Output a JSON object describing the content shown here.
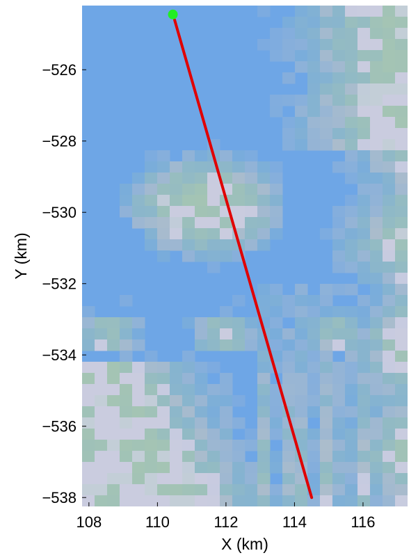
{
  "chart_data": {
    "type": "line",
    "title": "",
    "xlabel": "X (km)",
    "ylabel": "Y (km)",
    "xlim": [
      107.8,
      117.3
    ],
    "ylim": [
      -538.25,
      -524.2
    ],
    "xticks": [
      108,
      110,
      112,
      114,
      116
    ],
    "yticks": [
      -526,
      -528,
      -530,
      -532,
      -534,
      -536,
      -538
    ],
    "xtick_labels": [
      "108",
      "110",
      "112",
      "114",
      "116"
    ],
    "ytick_labels": [
      "−526",
      "−528",
      "−530",
      "−532",
      "−534",
      "−536",
      "−538"
    ],
    "grid": false,
    "legend": "none",
    "background": "satellite imagery (blue water, grey/lavender land/cloud patches)",
    "series": [
      {
        "kind": "track",
        "color": "#e00000",
        "points": [
          {
            "x": 110.5,
            "y": -524.6
          },
          {
            "x": 114.5,
            "y": -538.0
          }
        ]
      },
      {
        "kind": "start-marker",
        "color": "#22ee22",
        "points": [
          {
            "x": 110.45,
            "y": -524.45
          }
        ]
      }
    ]
  },
  "colors": {
    "water": "#6ea6e6",
    "land_grey": "#b4c0c8",
    "land_light": "#d8d4ee",
    "land_green": "#a4c4b4",
    "track": "#e00000",
    "marker": "#22ee22"
  }
}
